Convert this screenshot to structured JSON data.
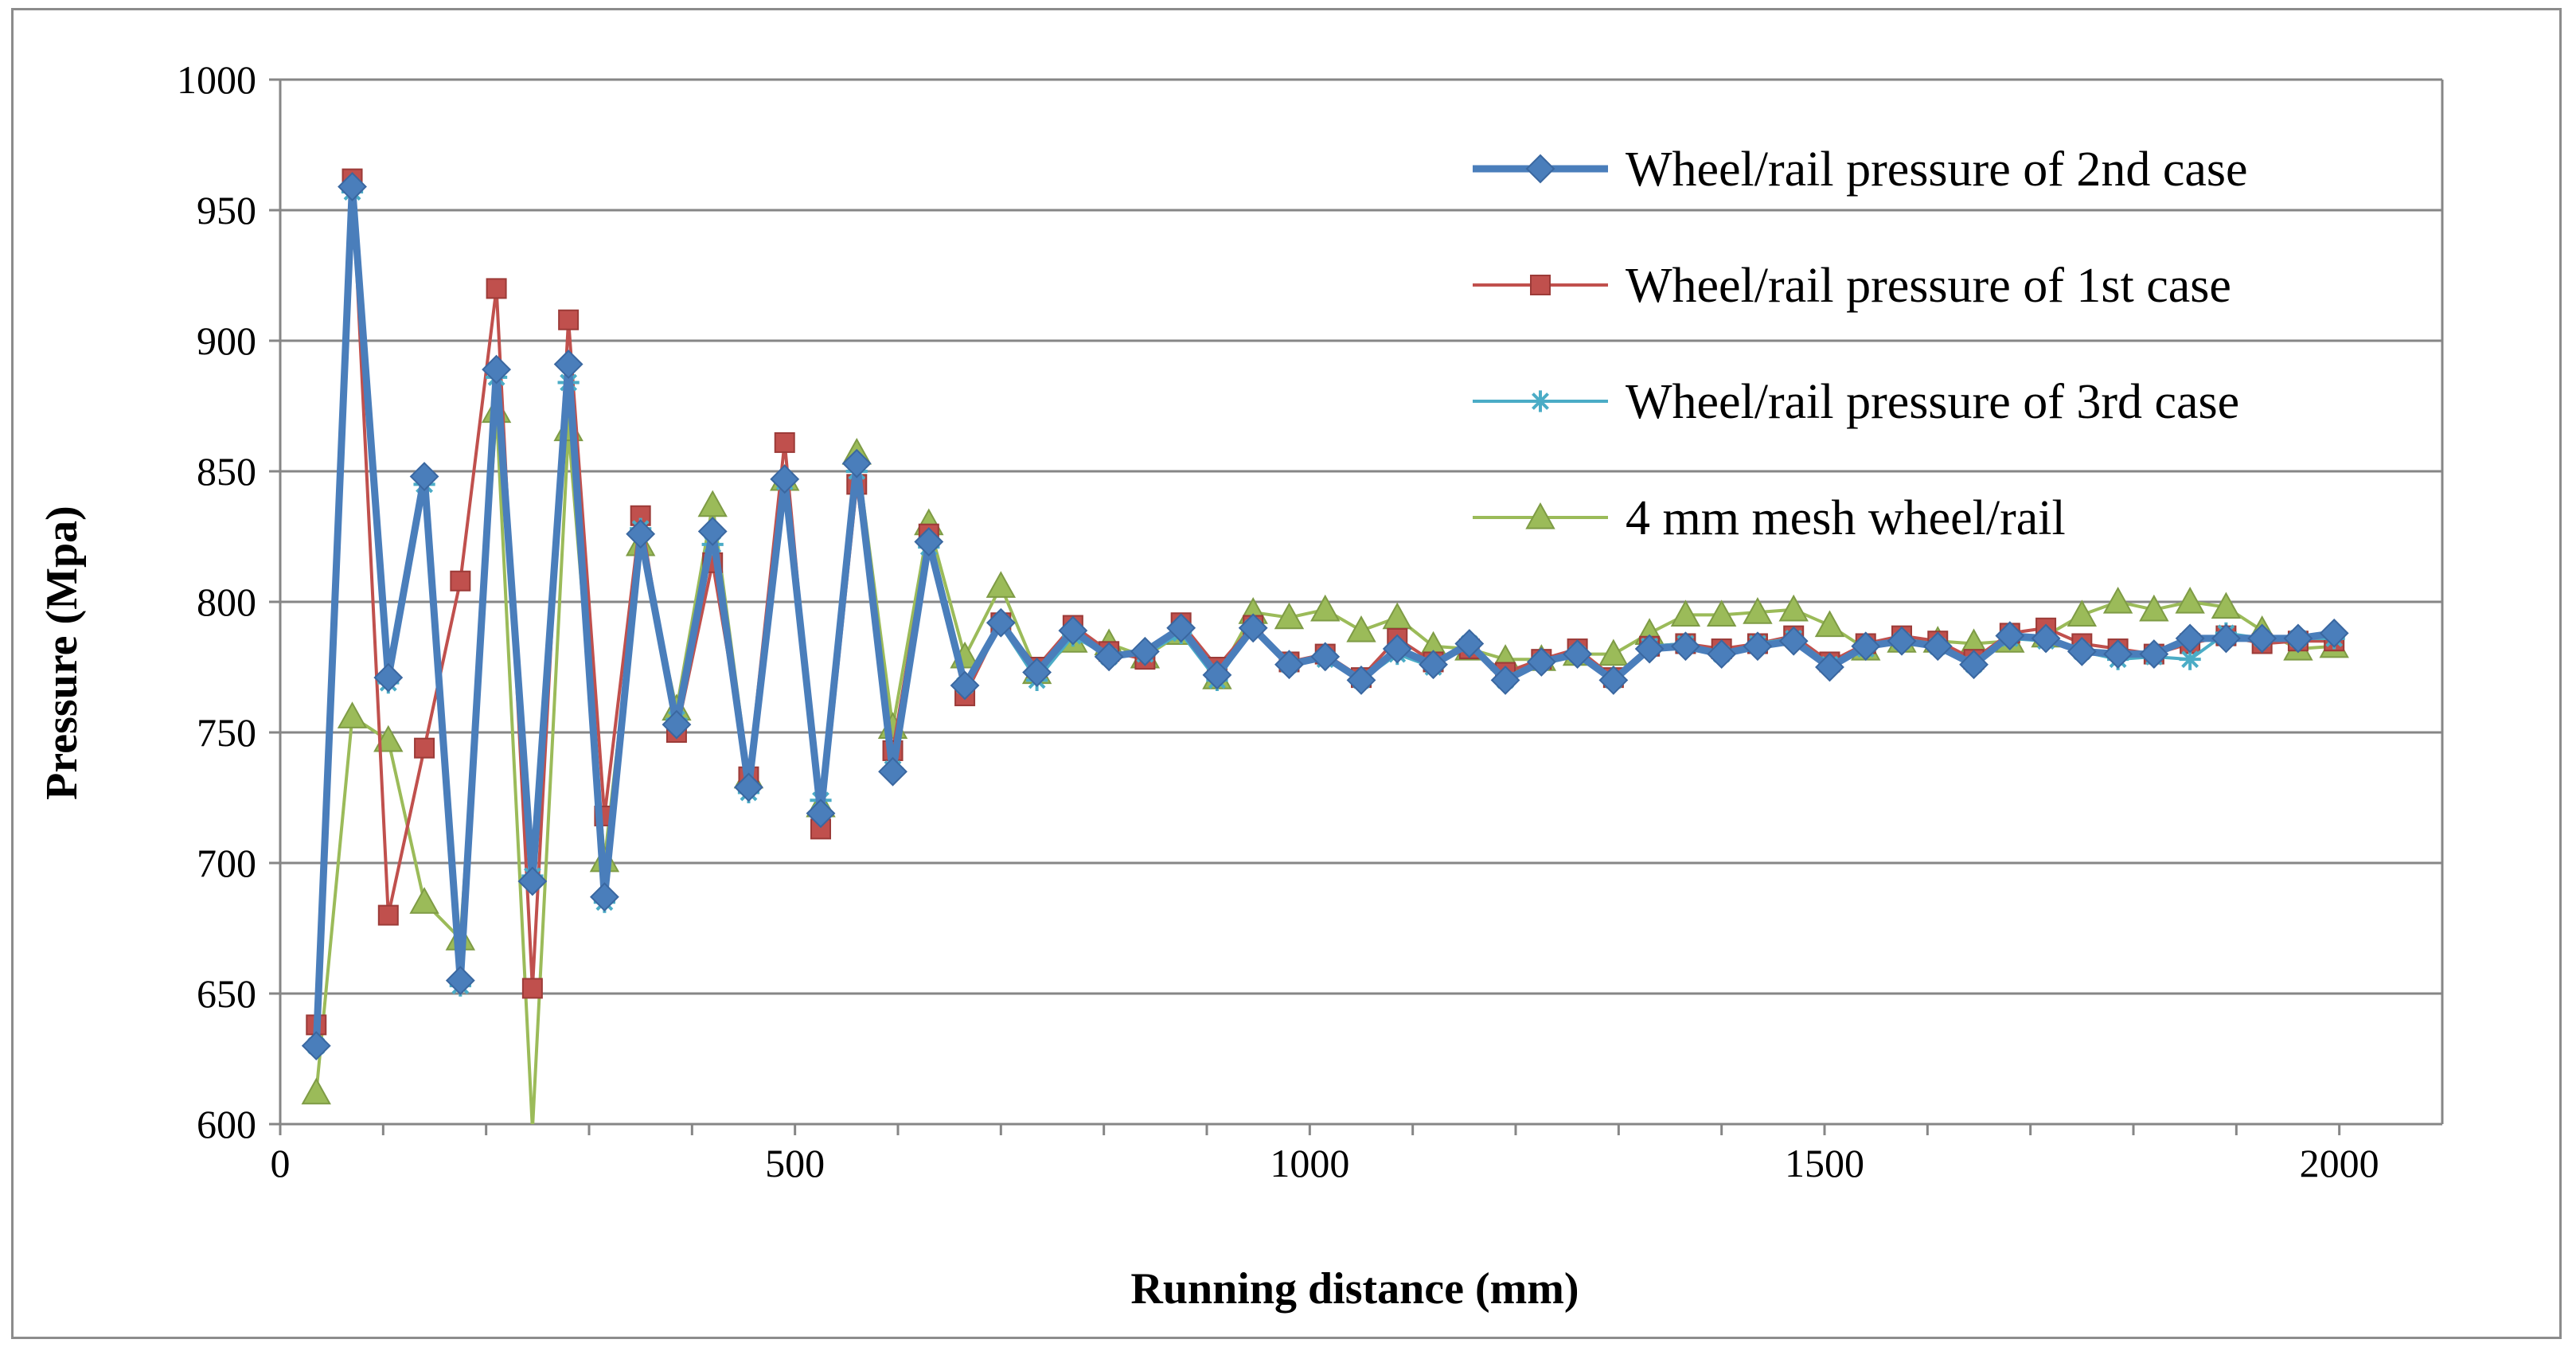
{
  "chart_data": {
    "type": "line",
    "title": "",
    "xlabel": "Running distance (mm)",
    "ylabel": "Pressure (Mpa)",
    "xlim": [
      0,
      2100
    ],
    "ylim": [
      600,
      1000
    ],
    "xticks": [
      0,
      500,
      1000,
      1500,
      2000
    ],
    "yticks": [
      600,
      650,
      700,
      750,
      800,
      850,
      900,
      950,
      1000
    ],
    "grid": "horizontal",
    "legend_position": "top-right",
    "series": [
      {
        "name": "Wheel/rail pressure of 2nd case",
        "color": "#4a7ebb",
        "marker": "diamond",
        "x": [
          35,
          70,
          105,
          140,
          175,
          210,
          245,
          280,
          315,
          350,
          385,
          420,
          455,
          490,
          525,
          560,
          595,
          630,
          665,
          700,
          735,
          770,
          805,
          840,
          875,
          910,
          945,
          980,
          1015,
          1050,
          1085,
          1120,
          1155,
          1190,
          1225,
          1260,
          1295,
          1330,
          1365,
          1400,
          1435,
          1470,
          1505,
          1540,
          1575,
          1610,
          1645,
          1680,
          1715,
          1750,
          1785,
          1820,
          1855,
          1890,
          1925,
          1960,
          1995
        ],
        "y": [
          630,
          959,
          771,
          848,
          655,
          889,
          693,
          891,
          687,
          826,
          753,
          827,
          729,
          847,
          719,
          853,
          735,
          823,
          768,
          792,
          773,
          789,
          779,
          781,
          790,
          772,
          790,
          776,
          779,
          770,
          782,
          776,
          784,
          770,
          777,
          780,
          770,
          782,
          783,
          780,
          783,
          785,
          775,
          783,
          785,
          783,
          776,
          787,
          786,
          781,
          780,
          780,
          786,
          786,
          786,
          786,
          788
        ]
      },
      {
        "name": "Wheel/rail pressure of 1st case",
        "color": "#c0504d",
        "marker": "square",
        "x": [
          35,
          70,
          105,
          140,
          175,
          210,
          245,
          280,
          315,
          350,
          385,
          420,
          455,
          490,
          525,
          560,
          595,
          630,
          665,
          700,
          735,
          770,
          805,
          840,
          875,
          910,
          945,
          980,
          1015,
          1050,
          1085,
          1120,
          1155,
          1190,
          1225,
          1260,
          1295,
          1330,
          1365,
          1400,
          1435,
          1470,
          1505,
          1540,
          1575,
          1610,
          1645,
          1680,
          1715,
          1750,
          1785,
          1820,
          1855,
          1890,
          1925,
          1960,
          1995
        ],
        "y": [
          638,
          962,
          680,
          744,
          808,
          920,
          652,
          908,
          718,
          833,
          750,
          815,
          733,
          861,
          713,
          845,
          743,
          826,
          764,
          792,
          775,
          791,
          781,
          778,
          792,
          775,
          791,
          777,
          780,
          771,
          786,
          777,
          782,
          773,
          778,
          782,
          771,
          783,
          784,
          782,
          784,
          787,
          777,
          784,
          787,
          785,
          778,
          788,
          790,
          784,
          782,
          780,
          784,
          787,
          784,
          785,
          785
        ]
      },
      {
        "name": "Wheel/rail pressure of 3rd case",
        "color": "#4bacc6",
        "marker": "asterisk",
        "x": [
          35,
          70,
          105,
          140,
          175,
          210,
          245,
          280,
          315,
          350,
          385,
          420,
          455,
          490,
          525,
          560,
          595,
          630,
          665,
          700,
          735,
          770,
          805,
          840,
          875,
          910,
          945,
          980,
          1015,
          1050,
          1085,
          1120,
          1155,
          1190,
          1225,
          1260,
          1295,
          1330,
          1365,
          1400,
          1435,
          1470,
          1505,
          1540,
          1575,
          1610,
          1645,
          1680,
          1715,
          1750,
          1785,
          1820,
          1855,
          1890,
          1925,
          1960,
          1995
        ],
        "y": [
          630,
          957,
          769,
          845,
          653,
          886,
          695,
          884,
          685,
          828,
          755,
          822,
          727,
          846,
          724,
          850,
          736,
          821,
          768,
          791,
          770,
          787,
          779,
          780,
          788,
          770,
          790,
          776,
          778,
          770,
          780,
          775,
          784,
          770,
          777,
          780,
          770,
          783,
          784,
          780,
          784,
          786,
          776,
          782,
          785,
          783,
          776,
          786,
          785,
          781,
          778,
          779,
          778,
          788,
          786,
          786,
          786
        ]
      },
      {
        "name": "4 mm mesh wheel/rail",
        "color": "#9bbb59",
        "marker": "triangle",
        "x": [
          35,
          70,
          105,
          140,
          175,
          210,
          245,
          280,
          315,
          350,
          385,
          420,
          455,
          490,
          525,
          560,
          595,
          630,
          665,
          700,
          735,
          770,
          805,
          840,
          875,
          910,
          945,
          980,
          1015,
          1050,
          1085,
          1120,
          1155,
          1190,
          1225,
          1260,
          1295,
          1330,
          1365,
          1400,
          1435,
          1470,
          1505,
          1540,
          1575,
          1610,
          1645,
          1680,
          1715,
          1750,
          1785,
          1820,
          1855,
          1890,
          1925,
          1960,
          1995
        ],
        "y": [
          612,
          756,
          747,
          685,
          671,
          873,
          598,
          866,
          701,
          822,
          759,
          837,
          733,
          847,
          722,
          857,
          752,
          830,
          779,
          806,
          773,
          785,
          784,
          779,
          788,
          771,
          796,
          794,
          797,
          789,
          794,
          783,
          782,
          778,
          778,
          780,
          780,
          788,
          795,
          795,
          796,
          797,
          791,
          782,
          785,
          785,
          784,
          785,
          787,
          795,
          800,
          797,
          800,
          798,
          789,
          782,
          783
        ]
      }
    ]
  }
}
